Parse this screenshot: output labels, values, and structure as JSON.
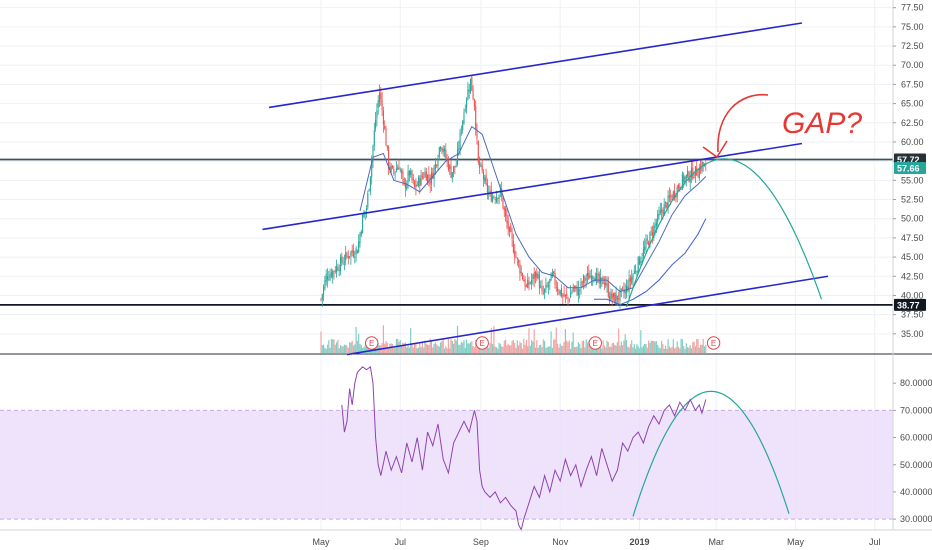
{
  "chart_data": {
    "type": "candlestick",
    "price_axis": {
      "min": 32.5,
      "max": 78.5,
      "ticks": [
        "77.50",
        "75.00",
        "72.50",
        "70.00",
        "67.50",
        "65.00",
        "62.50",
        "60.00",
        "57.50",
        "55.00",
        "52.50",
        "50.00",
        "47.50",
        "45.00",
        "42.50",
        "40.00",
        "37.50",
        "35.00"
      ]
    },
    "time_axis": {
      "ticks": [
        {
          "label": "May",
          "day": 0
        },
        {
          "label": "Jul",
          "day": 61
        },
        {
          "label": "Sep",
          "day": 123
        },
        {
          "label": "Nov",
          "day": 184
        },
        {
          "label": "2019",
          "day": 245,
          "bold": true
        },
        {
          "label": "Mar",
          "day": 304
        },
        {
          "label": "May",
          "day": 365
        },
        {
          "label": "Jul",
          "day": 426
        }
      ]
    },
    "price_badges": [
      {
        "value": "57.72",
        "color": "#263238",
        "price": 57.72
      },
      {
        "value": "57.66",
        "color": "#26a69a",
        "price": 56.6
      },
      {
        "value": "38.77",
        "color": "#131722",
        "price": 38.77
      }
    ],
    "horizontal_levels": [
      {
        "price": 57.72,
        "color": "#37575b"
      },
      {
        "price": 38.77,
        "color": "#131722"
      }
    ],
    "trendlines": [
      {
        "from": [
          -40,
          64.5
        ],
        "to": [
          370,
          75.5
        ],
        "color": "#2626cc"
      },
      {
        "from": [
          -45,
          48.6
        ],
        "to": [
          370,
          59.8
        ],
        "color": "#2626cc"
      },
      {
        "from": [
          20,
          32.3
        ],
        "to": [
          390,
          42.5
        ],
        "color": "#2626cc"
      }
    ],
    "projection_arc": {
      "start": [
        235,
        38.5
      ],
      "peak": [
        310,
        57.8
      ],
      "end": [
        385,
        39.5
      ],
      "color": "#26a69a"
    },
    "earnings_markers": [
      {
        "label": "E",
        "day": 39
      },
      {
        "label": "E",
        "day": 124
      },
      {
        "label": "E",
        "day": 211
      },
      {
        "label": "E",
        "day": 302
      }
    ],
    "close_path": [
      [
        0,
        39.5
      ],
      [
        4,
        42.5
      ],
      [
        8,
        43
      ],
      [
        14,
        44
      ],
      [
        22,
        45.5
      ],
      [
        28,
        46
      ],
      [
        32,
        50
      ],
      [
        35,
        51.5
      ],
      [
        38,
        56
      ],
      [
        42,
        63
      ],
      [
        45,
        66.5
      ],
      [
        48,
        63
      ],
      [
        52,
        57
      ],
      [
        55,
        56
      ],
      [
        60,
        57
      ],
      [
        64,
        54
      ],
      [
        68,
        56
      ],
      [
        72,
        54
      ],
      [
        76,
        55
      ],
      [
        80,
        56
      ],
      [
        84,
        55
      ],
      [
        88,
        57
      ],
      [
        92,
        60
      ],
      [
        96,
        58
      ],
      [
        100,
        56
      ],
      [
        104,
        57
      ],
      [
        108,
        62
      ],
      [
        112,
        66
      ],
      [
        115,
        68
      ],
      [
        118,
        65
      ],
      [
        121,
        57
      ],
      [
        124,
        56
      ],
      [
        127,
        54
      ],
      [
        130,
        53
      ],
      [
        134,
        53
      ],
      [
        138,
        53.5
      ],
      [
        142,
        50
      ],
      [
        146,
        47.5
      ],
      [
        150,
        45
      ],
      [
        154,
        43
      ],
      [
        158,
        41
      ],
      [
        162,
        42
      ],
      [
        166,
        43
      ],
      [
        170,
        40
      ],
      [
        174,
        41
      ],
      [
        178,
        42.5
      ],
      [
        182,
        41
      ],
      [
        186,
        40
      ],
      [
        190,
        39.5
      ],
      [
        194,
        41
      ],
      [
        198,
        40.5
      ],
      [
        202,
        42
      ],
      [
        206,
        42.5
      ],
      [
        210,
        43
      ],
      [
        214,
        41.5
      ],
      [
        218,
        42
      ],
      [
        222,
        40
      ],
      [
        226,
        39.5
      ],
      [
        230,
        40
      ],
      [
        234,
        40.5
      ],
      [
        238,
        42
      ],
      [
        242,
        43.5
      ],
      [
        246,
        45
      ],
      [
        250,
        46.5
      ],
      [
        254,
        48
      ],
      [
        258,
        49.5
      ],
      [
        262,
        51
      ],
      [
        266,
        52
      ],
      [
        270,
        53
      ],
      [
        274,
        54
      ],
      [
        278,
        55
      ],
      [
        282,
        55.5
      ],
      [
        286,
        56
      ],
      [
        290,
        56.2
      ],
      [
        293,
        57.1
      ],
      [
        296,
        56.4
      ]
    ],
    "ma_fast": [
      [
        30,
        51
      ],
      [
        40,
        58
      ],
      [
        48,
        58.5
      ],
      [
        56,
        55
      ],
      [
        66,
        54.5
      ],
      [
        76,
        53.5
      ],
      [
        86,
        55.5
      ],
      [
        96,
        57.5
      ],
      [
        106,
        58.5
      ],
      [
        116,
        62
      ],
      [
        124,
        61
      ],
      [
        132,
        57
      ],
      [
        140,
        53
      ],
      [
        150,
        48
      ],
      [
        160,
        45
      ],
      [
        170,
        43
      ],
      [
        180,
        42.5
      ],
      [
        190,
        41
      ],
      [
        200,
        41
      ],
      [
        210,
        42
      ],
      [
        220,
        42
      ],
      [
        230,
        40.5
      ],
      [
        240,
        41
      ],
      [
        250,
        44
      ],
      [
        260,
        47
      ],
      [
        270,
        50.5
      ],
      [
        280,
        53
      ],
      [
        290,
        54.5
      ],
      [
        296,
        55.5
      ]
    ],
    "ma_slow": [
      [
        210,
        39.5
      ],
      [
        220,
        39.5
      ],
      [
        230,
        38.8
      ],
      [
        240,
        39.5
      ],
      [
        250,
        40.5
      ],
      [
        260,
        42
      ],
      [
        270,
        44
      ],
      [
        280,
        45.5
      ],
      [
        290,
        48
      ],
      [
        296,
        50
      ]
    ],
    "volume": {
      "max_value": 100
    },
    "rsi": {
      "min": 26,
      "max": 90,
      "ticks": [
        "80.0000",
        "70.0000",
        "60.0000",
        "50.0000",
        "40.0000",
        "30.0000"
      ],
      "band": {
        "upper": 70,
        "lower": 30,
        "color": "#e9d9fb"
      },
      "values": [
        [
          16,
          72
        ],
        [
          18,
          62
        ],
        [
          20,
          66
        ],
        [
          22,
          78
        ],
        [
          24,
          72
        ],
        [
          26,
          80
        ],
        [
          28,
          84
        ],
        [
          32,
          86
        ],
        [
          35,
          85
        ],
        [
          38,
          86
        ],
        [
          40,
          80
        ],
        [
          42,
          60
        ],
        [
          44,
          50
        ],
        [
          46,
          46
        ],
        [
          50,
          55
        ],
        [
          54,
          48
        ],
        [
          58,
          53
        ],
        [
          62,
          47
        ],
        [
          66,
          58
        ],
        [
          70,
          51
        ],
        [
          74,
          60
        ],
        [
          78,
          48
        ],
        [
          82,
          62
        ],
        [
          86,
          57
        ],
        [
          90,
          65
        ],
        [
          94,
          52
        ],
        [
          98,
          47
        ],
        [
          102,
          58
        ],
        [
          106,
          62
        ],
        [
          110,
          66
        ],
        [
          114,
          62
        ],
        [
          118,
          70
        ],
        [
          120,
          66
        ],
        [
          122,
          48
        ],
        [
          124,
          42
        ],
        [
          126,
          40
        ],
        [
          130,
          38
        ],
        [
          134,
          40
        ],
        [
          138,
          36
        ],
        [
          142,
          38
        ],
        [
          146,
          35
        ],
        [
          150,
          33
        ],
        [
          152,
          28
        ],
        [
          154,
          26
        ],
        [
          156,
          30
        ],
        [
          160,
          36
        ],
        [
          164,
          42
        ],
        [
          168,
          38
        ],
        [
          172,
          46
        ],
        [
          176,
          40
        ],
        [
          180,
          48
        ],
        [
          184,
          44
        ],
        [
          188,
          52
        ],
        [
          192,
          46
        ],
        [
          196,
          50
        ],
        [
          200,
          42
        ],
        [
          204,
          48
        ],
        [
          208,
          53
        ],
        [
          212,
          46
        ],
        [
          216,
          56
        ],
        [
          220,
          50
        ],
        [
          224,
          44
        ],
        [
          228,
          48
        ],
        [
          232,
          58
        ],
        [
          236,
          55
        ],
        [
          240,
          60
        ],
        [
          244,
          62
        ],
        [
          248,
          58
        ],
        [
          252,
          64
        ],
        [
          256,
          68
        ],
        [
          260,
          65
        ],
        [
          264,
          70
        ],
        [
          268,
          72
        ],
        [
          272,
          68
        ],
        [
          276,
          73
        ],
        [
          280,
          70
        ],
        [
          284,
          74
        ],
        [
          288,
          70
        ],
        [
          291,
          72
        ],
        [
          293,
          69
        ],
        [
          296,
          74
        ]
      ],
      "arc": {
        "start": [
          240,
          31
        ],
        "peak": [
          300,
          77
        ],
        "end": [
          360,
          32
        ],
        "color": "#26a69a"
      }
    },
    "annotation": {
      "text": "GAP?",
      "color": "#e53935"
    }
  }
}
